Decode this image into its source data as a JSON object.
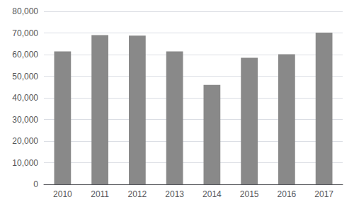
{
  "chart_data": {
    "type": "bar",
    "categories": [
      "2010",
      "2011",
      "2012",
      "2013",
      "2014",
      "2015",
      "2016",
      "2017"
    ],
    "values": [
      61500,
      69000,
      68800,
      61500,
      46000,
      58500,
      60200,
      70200
    ],
    "color": "#898989",
    "ylim": [
      0,
      80000
    ],
    "yticks": [
      0,
      {
        "value": 10000,
        "label": "10,000"
      },
      {
        "value": 20000,
        "label": "20,000"
      },
      {
        "value": 30000,
        "label": "30,000"
      },
      {
        "value": 40000,
        "label": "40,000"
      },
      {
        "value": 50000,
        "label": "50,000"
      },
      {
        "value": 60000,
        "label": "60,000"
      },
      {
        "value": 70000,
        "label": "70,000"
      },
      {
        "value": 80000,
        "label": "80,000"
      }
    ],
    "grid": true
  }
}
